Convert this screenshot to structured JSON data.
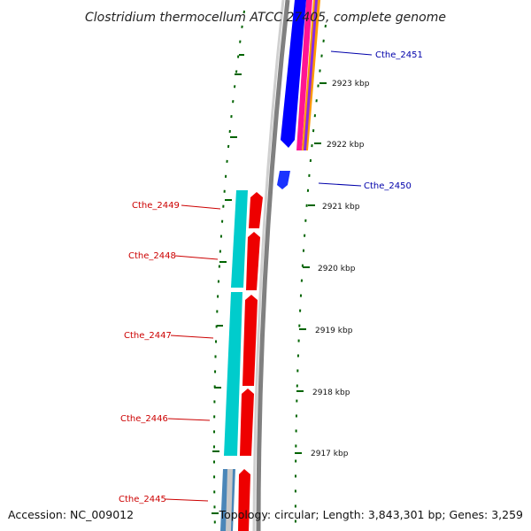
{
  "map": {
    "title": "Clostridium thermocellum ATCC 27405, complete genome",
    "accession": "Accession: NC_009012",
    "summary": "Topology: circular; Length: 3,843,301 bp; Genes: 3,259"
  },
  "colors": {
    "forward_gene": "#0000ff",
    "reverse_gene": "#ee0000",
    "cds_forward": "#ff7f00",
    "cds_magenta": "#ff1493",
    "teal_track": "#00cccc",
    "backbone": "#808080",
    "gc_skew": "#006400",
    "forward_label": "#0000aa",
    "reverse_label": "#cc0000"
  },
  "ticks": [
    {
      "label": "2923 kbp"
    },
    {
      "label": "2922 kbp"
    },
    {
      "label": "2921 kbp"
    },
    {
      "label": "2920 kbp"
    },
    {
      "label": "2919 kbp"
    },
    {
      "label": "2918 kbp"
    },
    {
      "label": "2917 kbp"
    }
  ],
  "genes": {
    "forward": [
      {
        "name": "Cthe_2451"
      },
      {
        "name": "Cthe_2450"
      }
    ],
    "reverse": [
      {
        "name": "Cthe_2449"
      },
      {
        "name": "Cthe_2448"
      },
      {
        "name": "Cthe_2447"
      },
      {
        "name": "Cthe_2446"
      },
      {
        "name": "Cthe_2445"
      }
    ]
  }
}
